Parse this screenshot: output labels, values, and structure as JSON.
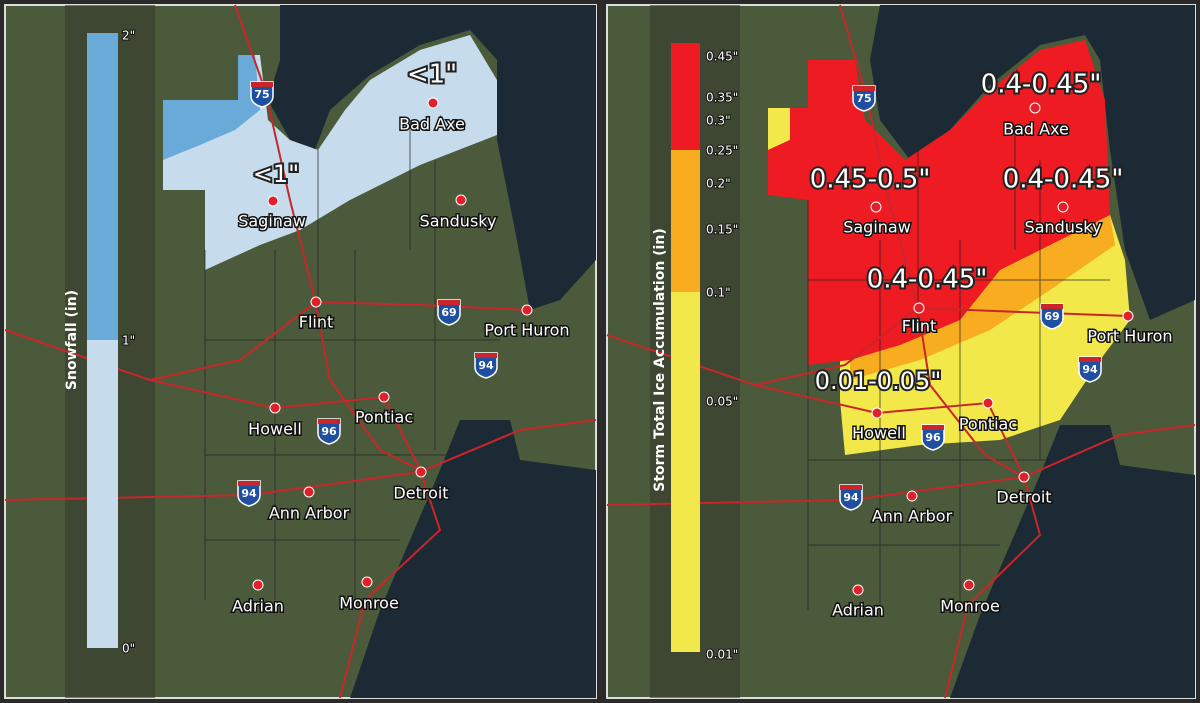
{
  "left_panel": {
    "legend_title": "Snowfall (in)",
    "legend_ticks": [
      "2\"",
      "1\"",
      "0\""
    ],
    "amounts": [
      "<1\"",
      "<1\""
    ],
    "cities": [
      "Bad Axe",
      "Saginaw",
      "Sandusky",
      "Flint",
      "Port Huron",
      "Howell",
      "Pontiac",
      "Detroit",
      "Ann Arbor",
      "Adrian",
      "Monroe"
    ],
    "shields": [
      "75",
      "69",
      "94",
      "96",
      "94"
    ]
  },
  "right_panel": {
    "legend_title": "Storm Total Ice Accumulation (in)",
    "legend_ticks": [
      "0.45\"",
      "0.35\"",
      "0.3\"",
      "0.25\"",
      "0.2\"",
      "0.15\"",
      "0.1\"",
      "0.05\"",
      "0.01\""
    ],
    "amounts": [
      "0.4-0.45\"",
      "0.45-0.5\"",
      "0.4-0.45\"",
      "0.4-0.45\"",
      "0.01-0.05\""
    ],
    "cities": [
      "Bad Axe",
      "Saginaw",
      "Sandusky",
      "Flint",
      "Port Huron",
      "Howell",
      "Pontiac",
      "Detroit",
      "Ann Arbor",
      "Adrian",
      "Monroe"
    ],
    "shields": [
      "75",
      "69",
      "94",
      "96",
      "94"
    ]
  }
}
